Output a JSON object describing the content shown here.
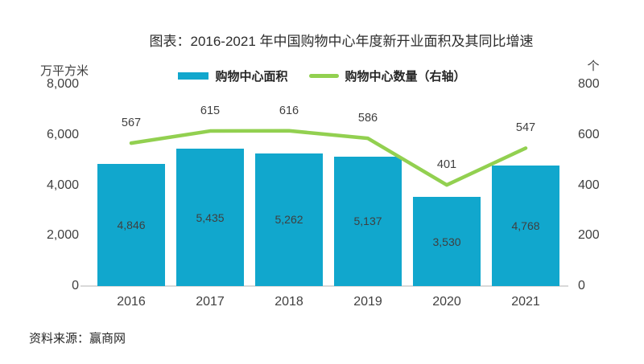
{
  "title": "图表：2016-2021 年中国购物中心年度新开业面积及其同比增速",
  "legend": {
    "bar_label": "购物中心面积",
    "line_label": "购物中心数量（右轴）"
  },
  "left_axis": {
    "unit": "万平方米",
    "ticks": [
      "8,000",
      "6,000",
      "4,000",
      "2,000",
      "0"
    ]
  },
  "right_axis": {
    "unit": "个",
    "ticks": [
      "800",
      "600",
      "400",
      "200",
      "0"
    ]
  },
  "source": "资料来源：赢商网",
  "colors": {
    "bar": "#11a7cd",
    "line": "#92d050",
    "text": "#404040",
    "axis_line": "#d9d9d9"
  },
  "chart_data": {
    "type": "bar",
    "subtype": "bar+line combo",
    "title": "图表：2016-2021 年中国购物中心年度新开业面积及其同比增速",
    "categories": [
      "2016",
      "2017",
      "2018",
      "2019",
      "2020",
      "2021"
    ],
    "series": [
      {
        "name": "购物中心面积",
        "type": "bar",
        "axis": "left",
        "values": [
          4846,
          5435,
          5262,
          5137,
          3530,
          4768
        ],
        "labels": [
          "4,846",
          "5,435",
          "5,262",
          "5,137",
          "3,530",
          "4,768"
        ]
      },
      {
        "name": "购物中心数量（右轴）",
        "type": "line",
        "axis": "right",
        "values": [
          567,
          615,
          616,
          586,
          401,
          547
        ],
        "labels": [
          "567",
          "615",
          "616",
          "586",
          "401",
          "547"
        ]
      }
    ],
    "left_ylabel": "万平方米",
    "right_ylabel": "个",
    "left_ylim": [
      0,
      8000
    ],
    "right_ylim": [
      0,
      800
    ],
    "grid": false,
    "legend_position": "top"
  }
}
